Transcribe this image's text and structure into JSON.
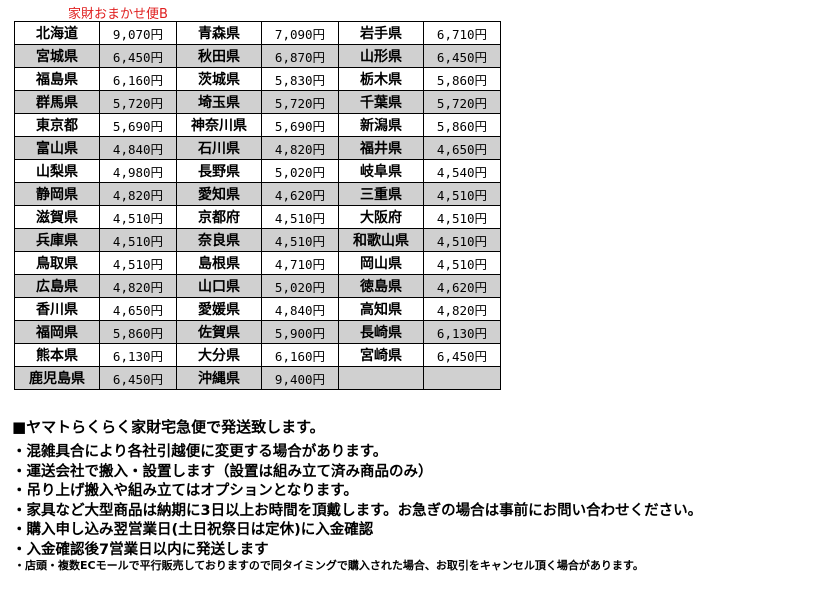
{
  "title": "家財おまかせ便B",
  "rows": [
    [
      [
        "北海道",
        "9,070円"
      ],
      [
        "青森県",
        "7,090円"
      ],
      [
        "岩手県",
        "6,710円"
      ]
    ],
    [
      [
        "宮城県",
        "6,450円"
      ],
      [
        "秋田県",
        "6,870円"
      ],
      [
        "山形県",
        "6,450円"
      ]
    ],
    [
      [
        "福島県",
        "6,160円"
      ],
      [
        "茨城県",
        "5,830円"
      ],
      [
        "栃木県",
        "5,860円"
      ]
    ],
    [
      [
        "群馬県",
        "5,720円"
      ],
      [
        "埼玉県",
        "5,720円"
      ],
      [
        "千葉県",
        "5,720円"
      ]
    ],
    [
      [
        "東京都",
        "5,690円"
      ],
      [
        "神奈川県",
        "5,690円"
      ],
      [
        "新潟県",
        "5,860円"
      ]
    ],
    [
      [
        "富山県",
        "4,840円"
      ],
      [
        "石川県",
        "4,820円"
      ],
      [
        "福井県",
        "4,650円"
      ]
    ],
    [
      [
        "山梨県",
        "4,980円"
      ],
      [
        "長野県",
        "5,020円"
      ],
      [
        "岐阜県",
        "4,540円"
      ]
    ],
    [
      [
        "静岡県",
        "4,820円"
      ],
      [
        "愛知県",
        "4,620円"
      ],
      [
        "三重県",
        "4,510円"
      ]
    ],
    [
      [
        "滋賀県",
        "4,510円"
      ],
      [
        "京都府",
        "4,510円"
      ],
      [
        "大阪府",
        "4,510円"
      ]
    ],
    [
      [
        "兵庫県",
        "4,510円"
      ],
      [
        "奈良県",
        "4,510円"
      ],
      [
        "和歌山県",
        "4,510円"
      ]
    ],
    [
      [
        "鳥取県",
        "4,510円"
      ],
      [
        "島根県",
        "4,710円"
      ],
      [
        "岡山県",
        "4,510円"
      ]
    ],
    [
      [
        "広島県",
        "4,820円"
      ],
      [
        "山口県",
        "5,020円"
      ],
      [
        "徳島県",
        "4,620円"
      ]
    ],
    [
      [
        "香川県",
        "4,650円"
      ],
      [
        "愛媛県",
        "4,840円"
      ],
      [
        "高知県",
        "4,820円"
      ]
    ],
    [
      [
        "福岡県",
        "5,860円"
      ],
      [
        "佐賀県",
        "5,900円"
      ],
      [
        "長崎県",
        "6,130円"
      ]
    ],
    [
      [
        "熊本県",
        "6,130円"
      ],
      [
        "大分県",
        "6,160円"
      ],
      [
        "宮崎県",
        "6,450円"
      ]
    ],
    [
      [
        "鹿児島県",
        "6,450円"
      ],
      [
        "沖縄県",
        "9,400円"
      ],
      [
        "",
        ""
      ]
    ]
  ],
  "notes": {
    "heading": "■ヤマトらくらく家財宅急便で発送致します。",
    "items": [
      "・混雑具合により各社引越便に変更する場合があります。",
      "・運送会社で搬入・設置します（設置は組み立て済み商品のみ）",
      "・吊り上げ搬入や組み立てはオプションとなります。",
      "・家具など大型商品は納期に3日以上お時間を頂戴します。お急ぎの場合は事前にお問い合わせください。",
      "・購入申し込み翌営業日(土日祝祭日は定休)に入金確認",
      "・入金確認後7営業日以内に発送します"
    ],
    "small": "・店頭・複数ECモールで平行販売しておりますので同タイミングで購入された場合、お取引をキャンセル頂く場合があります。"
  }
}
